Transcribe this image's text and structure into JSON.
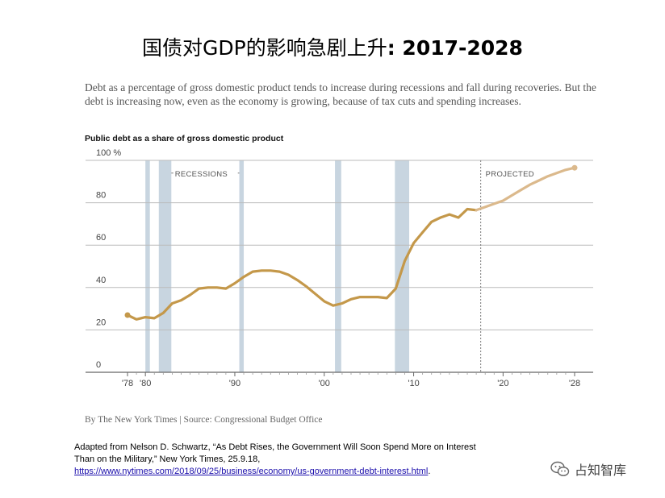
{
  "slide": {
    "title_cn": "国债对GDP的影响急剧上升",
    "title_years": ": 2017-2028"
  },
  "intro_text": "Debt as a percentage of gross domestic product tends to increase during recessions and fall during recoveries. But the debt is increasing now, even as the economy is growing, because of tax cuts and spending increases.",
  "byline": "By The New York Times | Source: Congressional Budget Office",
  "citation": {
    "line1": "Adapted from Nelson D. Schwartz, “As Debt Rises, the Government Will Soon Spend More on Interest",
    "line2": "Than on the Military,” New York Times, 25.9.18,",
    "link": "https://www.nytimes.com/2018/09/25/business/economy/us-government-debt-interest.html",
    "link_suffix": "."
  },
  "watermark": {
    "text": "占知智库",
    "icon": "wechat-icon"
  },
  "chart_data": {
    "type": "line",
    "title": "Public debt as a share of gross domestic product",
    "xlabel": "",
    "ylabel": "",
    "xlim": [
      1977,
      2029
    ],
    "ylim": [
      0,
      100
    ],
    "y_ticks": [
      0,
      20,
      40,
      60,
      80,
      100
    ],
    "y_tick_labels": [
      "0",
      "20",
      "40",
      "60",
      "80",
      "100 %"
    ],
    "x_ticks": [
      1978,
      1980,
      1990,
      2000,
      2010,
      2020,
      2028
    ],
    "x_tick_labels": [
      "'78",
      "'80",
      "'90",
      "'00",
      "'10",
      "'20",
      "'28"
    ],
    "grid": true,
    "legend": "none",
    "annotations": [
      {
        "text": "RECESSIONS",
        "x": 1984.5,
        "y": 94
      },
      {
        "text": "PROJECTED",
        "x": 2020,
        "y": 94
      }
    ],
    "recessions": [
      [
        1980.0,
        1980.5
      ],
      [
        1981.5,
        1982.9
      ],
      [
        1990.5,
        1991.0
      ],
      [
        2001.2,
        2001.9
      ],
      [
        2007.9,
        2009.5
      ]
    ],
    "projection_start": 2017.5,
    "colors": {
      "actual": "#c4984a",
      "projected": "#dbb98c",
      "recession": "#c8d5e0",
      "grid": "#bbbbbb",
      "axis": "#666666"
    },
    "series": [
      {
        "kind": "actual",
        "x": [
          1978,
          1979,
          1980,
          1981,
          1982,
          1983,
          1984,
          1985,
          1986,
          1987,
          1988,
          1989,
          1990,
          1991,
          1992,
          1993,
          1994,
          1995,
          1996,
          1997,
          1998,
          1999,
          2000,
          2001,
          2002,
          2003,
          2004,
          2005,
          2006,
          2007,
          2008,
          2009,
          2010,
          2011,
          2012,
          2013,
          2014,
          2015,
          2016,
          2017
        ],
        "values": [
          27,
          25,
          26,
          25.5,
          28,
          32.5,
          34,
          36.5,
          39.5,
          40,
          40,
          39.5,
          42,
          45,
          47.5,
          48,
          48,
          47.5,
          46,
          43.5,
          40.5,
          37,
          33.5,
          31.5,
          32.5,
          34.5,
          35.5,
          35.5,
          35.5,
          35,
          39.5,
          52.5,
          61,
          66,
          71,
          73,
          74.5,
          73,
          77,
          76.5
        ]
      },
      {
        "kind": "projected",
        "x": [
          2017,
          2018,
          2019,
          2020,
          2021,
          2022,
          2023,
          2024,
          2025,
          2026,
          2027,
          2028
        ],
        "values": [
          76.5,
          78,
          79.5,
          81,
          83.5,
          86,
          88.5,
          90.5,
          92.5,
          94,
          95.5,
          96.5
        ]
      }
    ]
  }
}
